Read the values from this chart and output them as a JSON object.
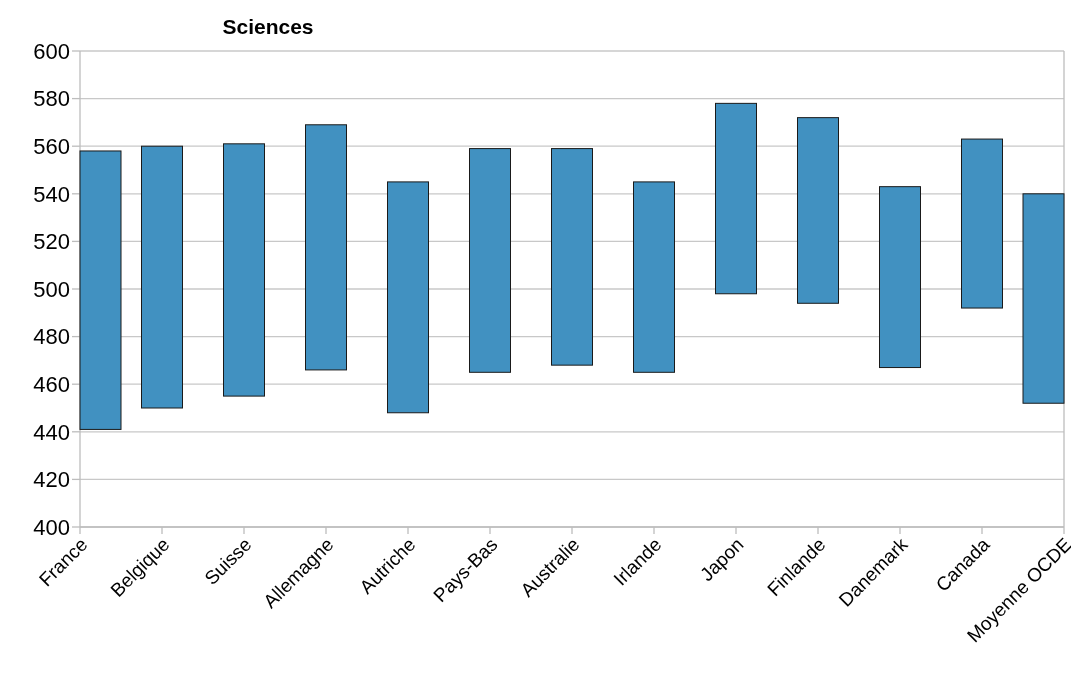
{
  "chart_data": {
    "type": "bar",
    "title": "Sciences",
    "categories": [
      "France",
      "Belgique",
      "Suisse",
      "Allemagne",
      "Autriche",
      "Pays-Bas",
      "Australie",
      "Irlande",
      "Japon",
      "Finlande",
      "Danemark",
      "Canada",
      "Moyenne OCDE"
    ],
    "base": [
      441,
      450,
      455,
      466,
      448,
      465,
      468,
      465,
      498,
      494,
      467,
      492,
      452
    ],
    "values": [
      117,
      110,
      106,
      103,
      97,
      94,
      91,
      80,
      80,
      78,
      76,
      71,
      88
    ],
    "color": "#4191c1",
    "ylim": [
      400,
      600
    ],
    "yticks": [
      400,
      420,
      440,
      460,
      480,
      500,
      520,
      540,
      560,
      580,
      600
    ],
    "grid": "y"
  }
}
